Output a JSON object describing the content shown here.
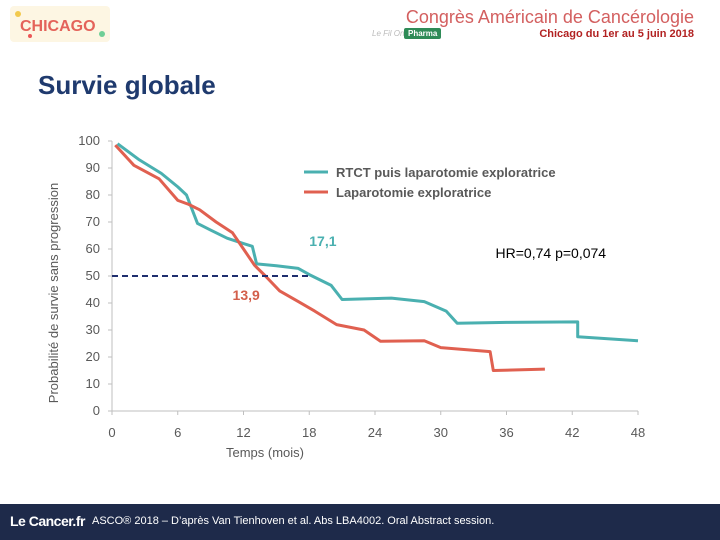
{
  "header": {
    "event_name": "Congrès Américain de Cancérologie",
    "event_dates": "Chicago du 1er au 5 juin 2018",
    "logo_text": "CHICAGO",
    "partner_name": "Le Fil Onco",
    "partner_tag": "Pharma"
  },
  "slide_title": "Survie globale",
  "chart_data": {
    "type": "line",
    "xlabel": "Temps (mois)",
    "ylabel": "Probabilité de survie sans progression",
    "xlim": [
      0,
      48
    ],
    "ylim": [
      0,
      100
    ],
    "xticks": [
      0,
      6,
      12,
      18,
      24,
      30,
      36,
      42,
      48
    ],
    "yticks": [
      0,
      10,
      20,
      30,
      40,
      50,
      60,
      70,
      80,
      90,
      100
    ],
    "legend_position": "top-right",
    "grid": false,
    "series": [
      {
        "name": "RTCT puis laparotomie exploratrice",
        "color": "#4ab0b0",
        "points": [
          [
            0.5,
            99
          ],
          [
            2.5,
            93
          ],
          [
            4.5,
            88
          ],
          [
            6,
            83
          ],
          [
            6.8,
            80
          ],
          [
            7.8,
            69.5
          ],
          [
            9,
            67
          ],
          [
            10.5,
            64
          ],
          [
            12,
            62
          ],
          [
            12.8,
            61
          ],
          [
            13.2,
            54.5
          ],
          [
            15,
            53.8
          ],
          [
            17,
            52.8
          ],
          [
            18,
            50.5
          ],
          [
            20,
            46.5
          ],
          [
            21,
            41.3
          ],
          [
            25.5,
            41.8
          ],
          [
            28.5,
            40.5
          ],
          [
            30.5,
            37
          ],
          [
            31.5,
            32.5
          ],
          [
            36,
            32.8
          ],
          [
            42.5,
            33
          ],
          [
            42.5,
            27.5
          ],
          [
            48,
            26
          ]
        ]
      },
      {
        "name": "Laparotomie exploratrice",
        "color": "#e06050",
        "points": [
          [
            0.3,
            98.5
          ],
          [
            2,
            91
          ],
          [
            4.3,
            86
          ],
          [
            6,
            78
          ],
          [
            7,
            76.5
          ],
          [
            8,
            74.5
          ],
          [
            9.5,
            70
          ],
          [
            11,
            66
          ],
          [
            12,
            60
          ],
          [
            13,
            54
          ],
          [
            14,
            50
          ],
          [
            15.3,
            44.5
          ],
          [
            17,
            40.5
          ],
          [
            18.5,
            37
          ],
          [
            20.5,
            32
          ],
          [
            23,
            30
          ],
          [
            24.5,
            25.8
          ],
          [
            28.5,
            26
          ],
          [
            30,
            23.5
          ],
          [
            34.5,
            22
          ],
          [
            34.8,
            15
          ],
          [
            39.5,
            15.5
          ]
        ]
      }
    ],
    "median_line": {
      "y": 50,
      "x_end": 18,
      "color": "#1f2e6e"
    },
    "annotations": [
      {
        "text": "17,1",
        "x": 18,
        "y": 63,
        "color": "#4ab0b0"
      },
      {
        "text": "13,9",
        "x": 11,
        "y": 43,
        "color": "#d35f4b"
      },
      {
        "text": "HR=0,74 p=0,074",
        "x": 35,
        "y": 58.5,
        "color": "#000000"
      }
    ]
  },
  "footer": {
    "brand": "Le Cancer.fr",
    "citation": "ASCO® 2018 – D’après Van Tienhoven et al. Abs LBA4002. Oral Abstract session."
  }
}
